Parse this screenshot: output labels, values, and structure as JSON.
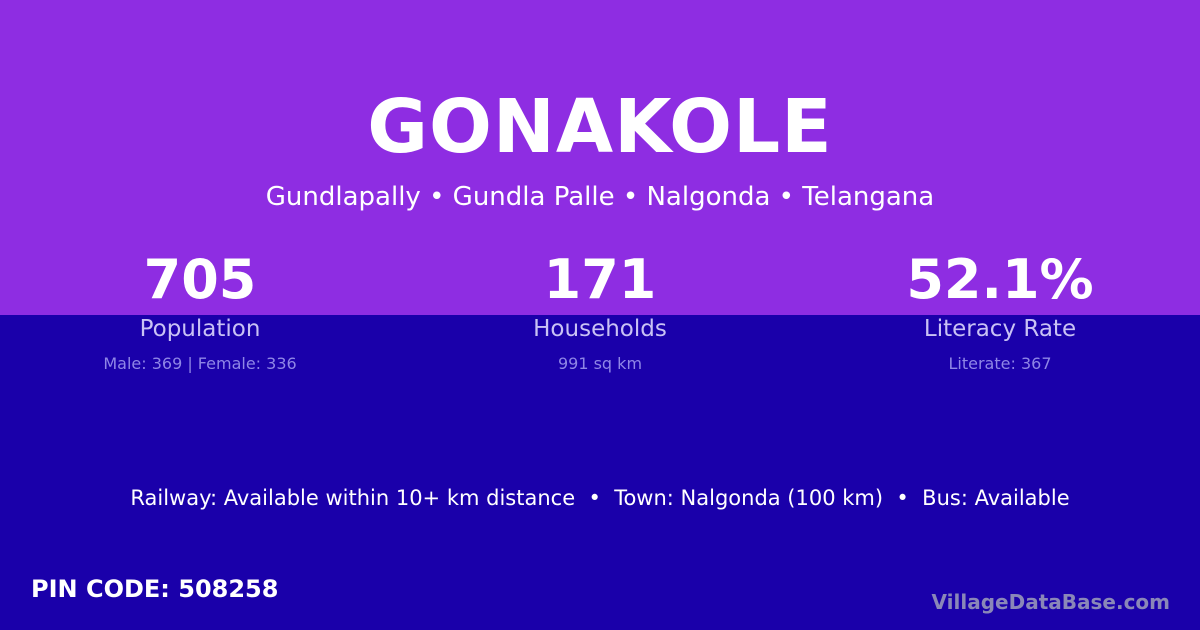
{
  "colors": {
    "header_bg": "#8e2de2",
    "body_bg": "#1a00aa"
  },
  "title": "GONAKOLE",
  "subtitle": "Gundlapally • Gundla Palle • Nalgonda • Telangana",
  "stats": [
    {
      "value": "705",
      "label": "Population",
      "sub": "Male: 369 | Female: 336"
    },
    {
      "value": "171",
      "label": "Households",
      "sub": "991 sq km"
    },
    {
      "value": "52.1%",
      "label": "Literacy Rate",
      "sub": "Literate: 367"
    }
  ],
  "facts": "Railway: Available within 10+ km distance  •  Town: Nalgonda (100 km)  •  Bus: Available",
  "pin_code": "PIN CODE: 508258",
  "brand": "VillageDataBase.com"
}
